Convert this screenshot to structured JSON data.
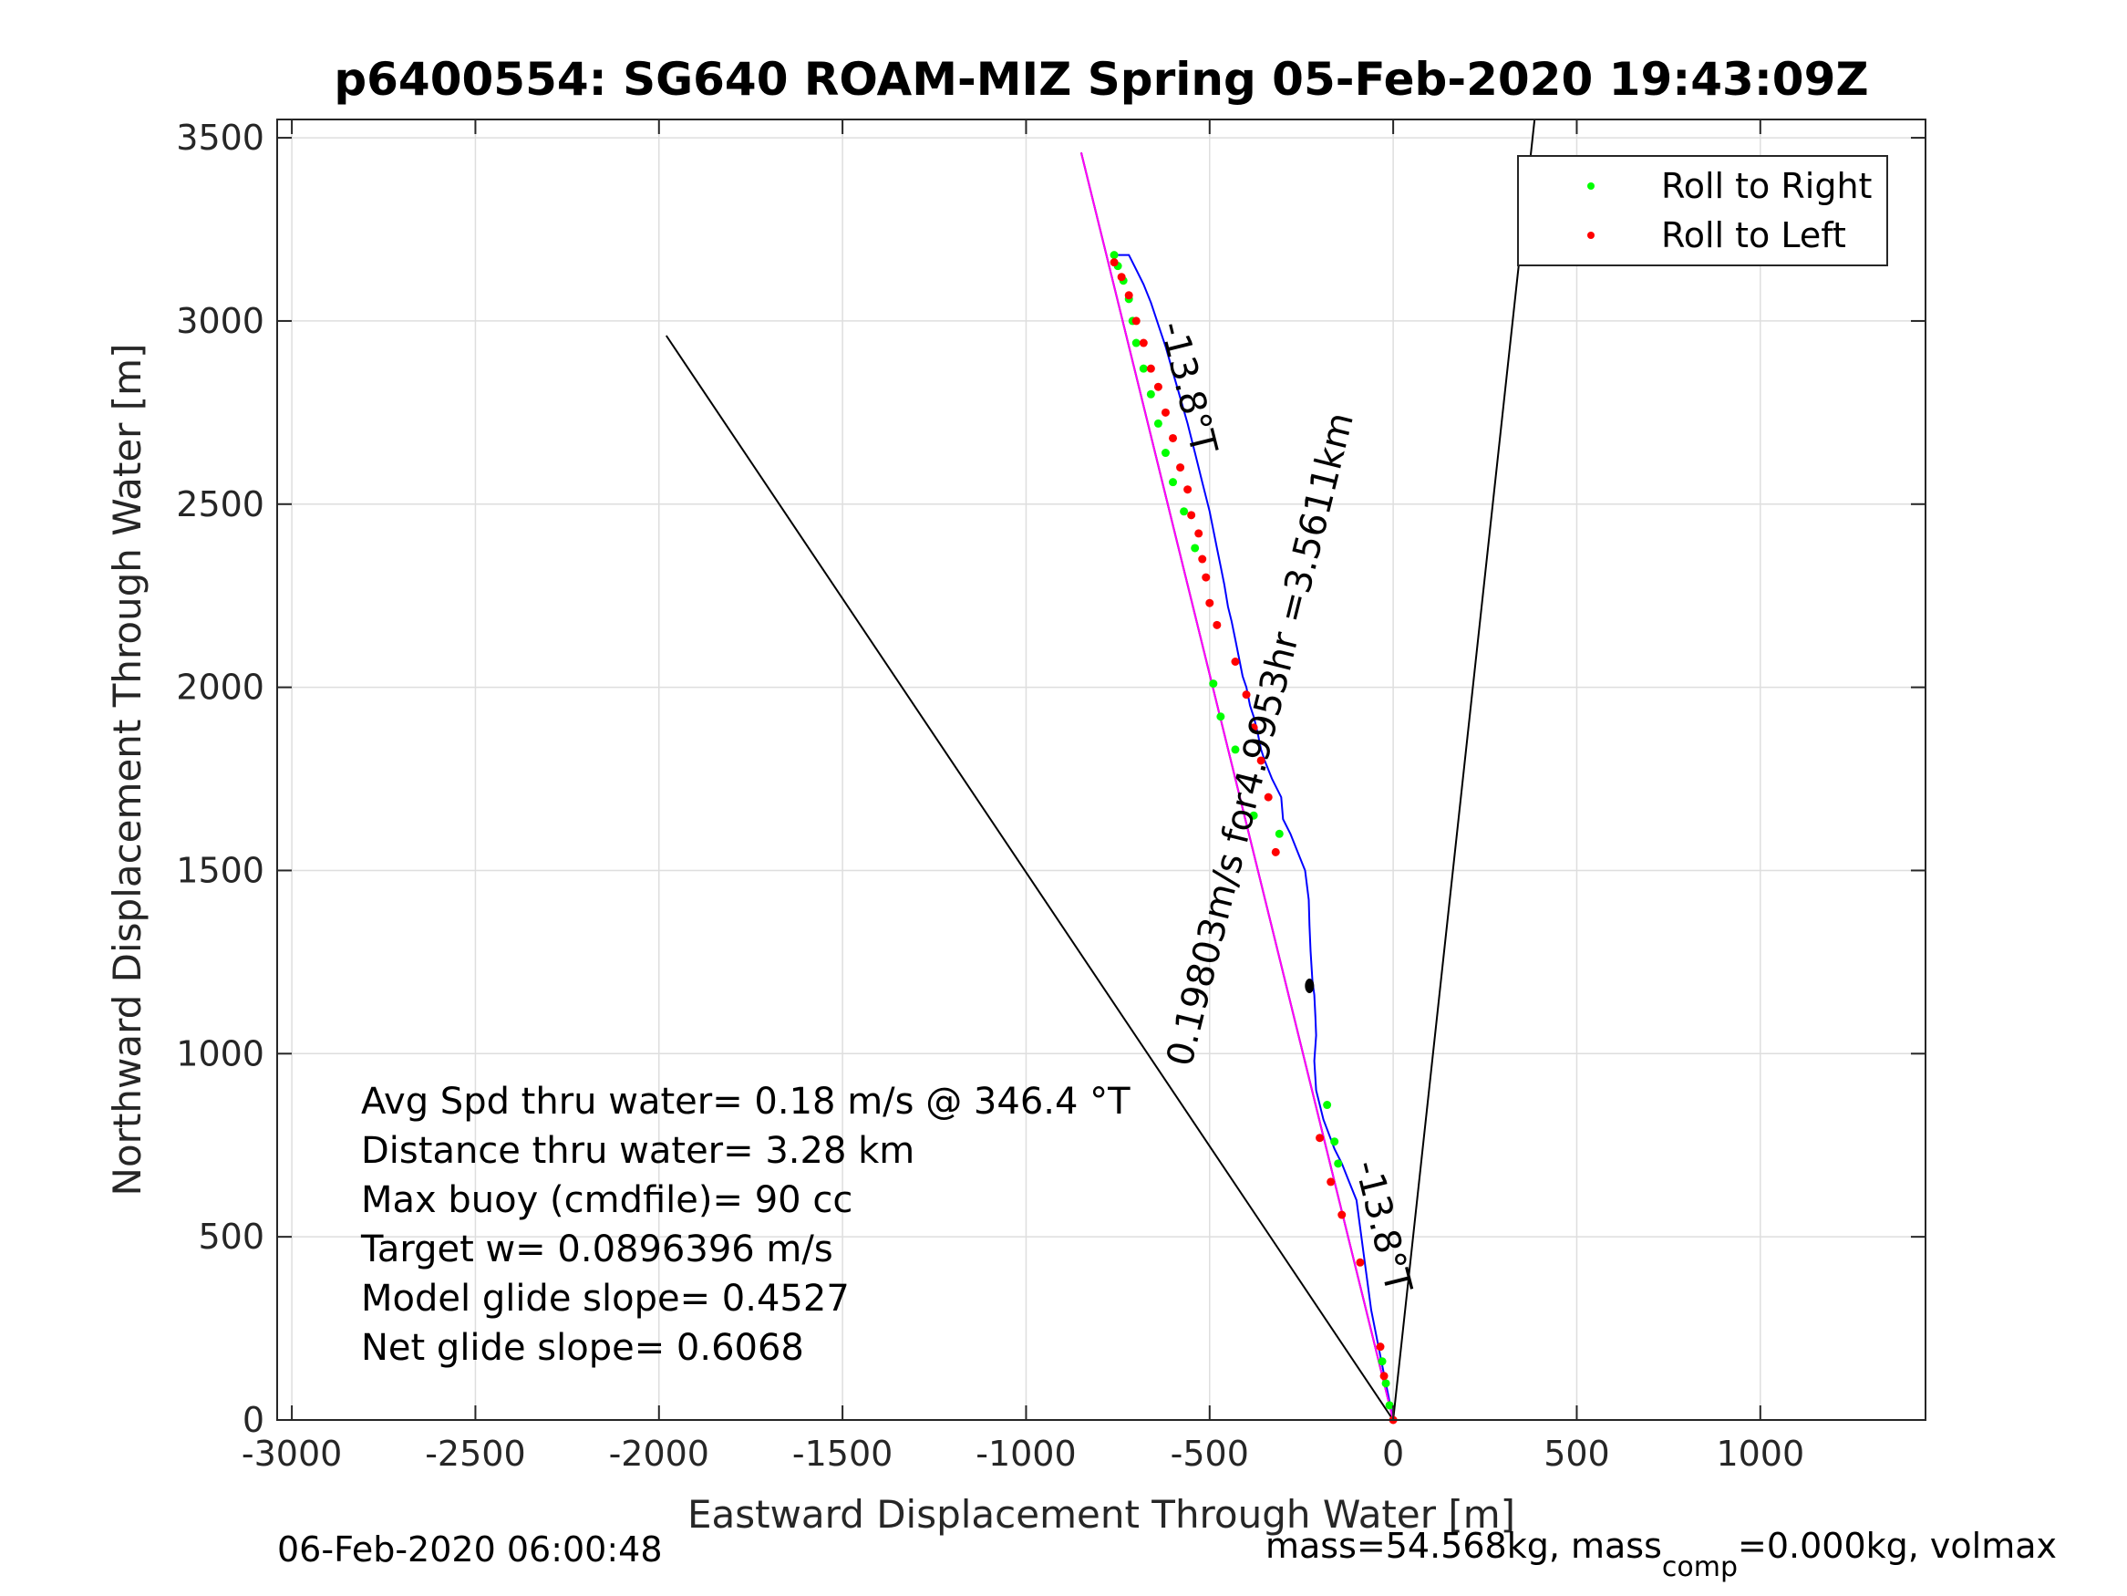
{
  "chart_data": {
    "type": "line",
    "title": "p6400554: SG640 ROAM-MIZ Spring 05-Feb-2020 19:43:09Z",
    "xlabel": "Eastward Displacement Through Water [m]",
    "ylabel": "Northward Displacement Through Water [m]",
    "xlim": [
      -3040,
      1450
    ],
    "ylim": [
      0,
      3550
    ],
    "xticks": [
      -3000,
      -2500,
      -2000,
      -1500,
      -1000,
      -500,
      0,
      500,
      1000
    ],
    "yticks": [
      0,
      500,
      1000,
      1500,
      2000,
      2500,
      3000,
      3500
    ],
    "x_tick_labels": [
      "-3000",
      "-2500",
      "-2000",
      "-1500",
      "-1000",
      "-500",
      "0",
      "500",
      "1000"
    ],
    "y_tick_labels": [
      "0",
      "500",
      "1000",
      "1500",
      "2000",
      "2500",
      "3000",
      "3500"
    ],
    "grid": true,
    "legend_position": "top-right",
    "legend": [
      {
        "label": "Roll to Right",
        "color": "#00ff00"
      },
      {
        "label": "Roll to Left",
        "color": "#ff0000"
      }
    ],
    "series": [
      {
        "role": "track",
        "color": "#0000ff",
        "x": [
          0,
          -10,
          -30,
          -60,
          -80,
          -100,
          -120,
          -140,
          -160,
          -175,
          -190,
          -200,
          -210,
          -215,
          -210,
          -212,
          -215,
          -220,
          -225,
          -228,
          -230,
          -240,
          -260,
          -280,
          -300,
          -305,
          -330,
          -350,
          -360,
          -370,
          -380,
          -390,
          -400,
          -410,
          -420,
          -430,
          -440,
          -450,
          -460,
          -470,
          -480,
          -490,
          -500,
          -520,
          -540,
          -560,
          -580,
          -600,
          -620,
          -640,
          -660,
          -680,
          -700,
          -720,
          -740,
          -760
        ],
        "y": [
          0,
          50,
          150,
          300,
          450,
          600,
          650,
          700,
          740,
          780,
          820,
          860,
          900,
          980,
          1050,
          1100,
          1160,
          1200,
          1280,
          1350,
          1420,
          1500,
          1550,
          1600,
          1640,
          1700,
          1750,
          1800,
          1830,
          1880,
          1920,
          1950,
          2000,
          2030,
          2080,
          2130,
          2180,
          2220,
          2280,
          2330,
          2380,
          2430,
          2480,
          2560,
          2640,
          2720,
          2790,
          2860,
          2930,
          2990,
          3050,
          3100,
          3140,
          3180,
          3180,
          3180
        ]
      },
      {
        "role": "model",
        "color": "#ff00ff",
        "x": [
          0,
          -850
        ],
        "y": [
          0,
          3460
        ]
      },
      {
        "role": "reference",
        "color": "#000000",
        "x": [
          0,
          -850
        ],
        "y": [
          0,
          3460
        ]
      },
      {
        "role": "reference",
        "color": "#000000",
        "x": [
          0,
          -1980
        ],
        "y": [
          0,
          2960
        ]
      },
      {
        "role": "reference",
        "color": "#000000",
        "x": [
          0,
          385
        ],
        "y": [
          0,
          3550
        ]
      },
      {
        "name": "Roll to Right",
        "type": "scatter",
        "color": "#00ff00",
        "x": [
          -10,
          -20,
          -30,
          -180,
          -160,
          -150,
          -310,
          -380,
          -430,
          -470,
          -490,
          -540,
          -570,
          -600,
          -620,
          -640,
          -660,
          -680,
          -700,
          -710,
          -720,
          -735,
          -750,
          -760
        ],
        "y": [
          40,
          100,
          160,
          860,
          760,
          700,
          1600,
          1650,
          1830,
          1920,
          2010,
          2380,
          2480,
          2560,
          2640,
          2720,
          2800,
          2870,
          2940,
          3000,
          3060,
          3110,
          3150,
          3180
        ]
      },
      {
        "name": "Roll to Left",
        "type": "scatter",
        "color": "#ff0000",
        "x": [
          0,
          -25,
          -35,
          -90,
          -170,
          -200,
          -140,
          -320,
          -340,
          -360,
          -380,
          -400,
          -430,
          -480,
          -500,
          -510,
          -520,
          -530,
          -550,
          -560,
          -580,
          -600,
          -620,
          -640,
          -660,
          -680,
          -700,
          -720,
          -740,
          -760
        ],
        "y": [
          0,
          120,
          200,
          430,
          650,
          770,
          560,
          1550,
          1700,
          1800,
          1890,
          1980,
          2070,
          2170,
          2230,
          2300,
          2350,
          2420,
          2470,
          2540,
          2600,
          2680,
          2750,
          2820,
          2870,
          2940,
          3000,
          3070,
          3120,
          3160
        ]
      }
    ],
    "annotations": [
      {
        "text": "-13.8°T",
        "x": -590,
        "y": 2810,
        "rotation": 76
      },
      {
        "text": "0.19803m/s for4.9953hr =3.5611km",
        "x": -330,
        "y": 1850,
        "rotation": -76
      },
      {
        "text": "-13.8°T",
        "x": -60,
        "y": 520,
        "rotation": 76
      }
    ],
    "stats": [
      "Avg Spd thru water=  0.18 m/s @ 346.4 °T",
      "Distance thru water=  3.28 km",
      "Max buoy (cmdfile)= 90 cc",
      "Target w= 0.0896396 m/s",
      "Model glide slope= 0.4527",
      "Net glide slope= 0.6068"
    ]
  },
  "footer": {
    "date": "06-Feb-2020 06:00:48",
    "mass_prefix": "mass=54.568kg, mass",
    "mass_sub": "comp",
    "mass_suffix": "=0.000kg, volmax"
  }
}
